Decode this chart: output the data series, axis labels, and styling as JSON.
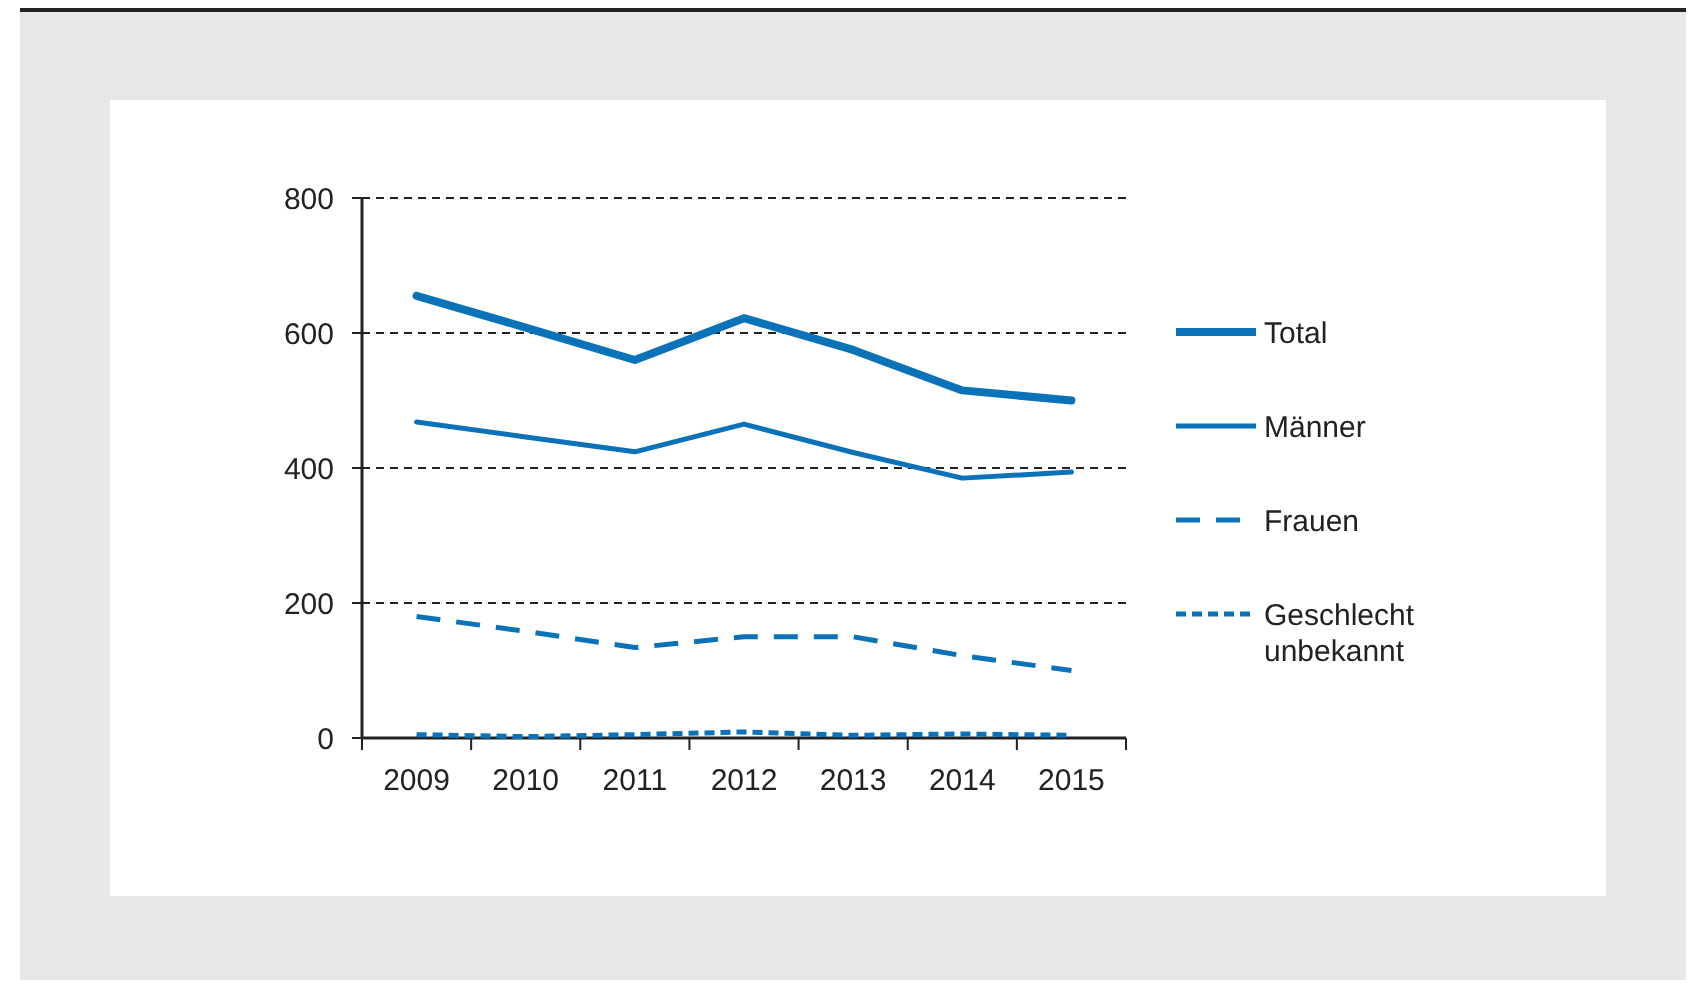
{
  "chart_data": {
    "type": "line",
    "categories": [
      "2009",
      "2010",
      "2011",
      "2012",
      "2013",
      "2014",
      "2015"
    ],
    "series": [
      {
        "name": "Total",
        "color": "#0a72b8",
        "line_style": "solid",
        "values": [
          655,
          608,
          560,
          622,
          575,
          515,
          500
        ]
      },
      {
        "name": "Männer",
        "color": "#0a72b8",
        "line_style": "solid",
        "values": [
          468,
          446,
          424,
          465,
          423,
          385,
          394
        ]
      },
      {
        "name": "Frauen",
        "color": "#0a72b8",
        "line_style": "dashed",
        "values": [
          180,
          158,
          134,
          150,
          150,
          122,
          100
        ]
      },
      {
        "name": "Geschlecht unbekannt",
        "color": "#0a72b8",
        "line_style": "dotted",
        "values": [
          5,
          2,
          5,
          9,
          4,
          6,
          4
        ]
      }
    ],
    "ylim": [
      0,
      800
    ],
    "yticks": [
      0,
      200,
      400,
      600,
      800
    ],
    "grid": "y",
    "legend": "right"
  }
}
